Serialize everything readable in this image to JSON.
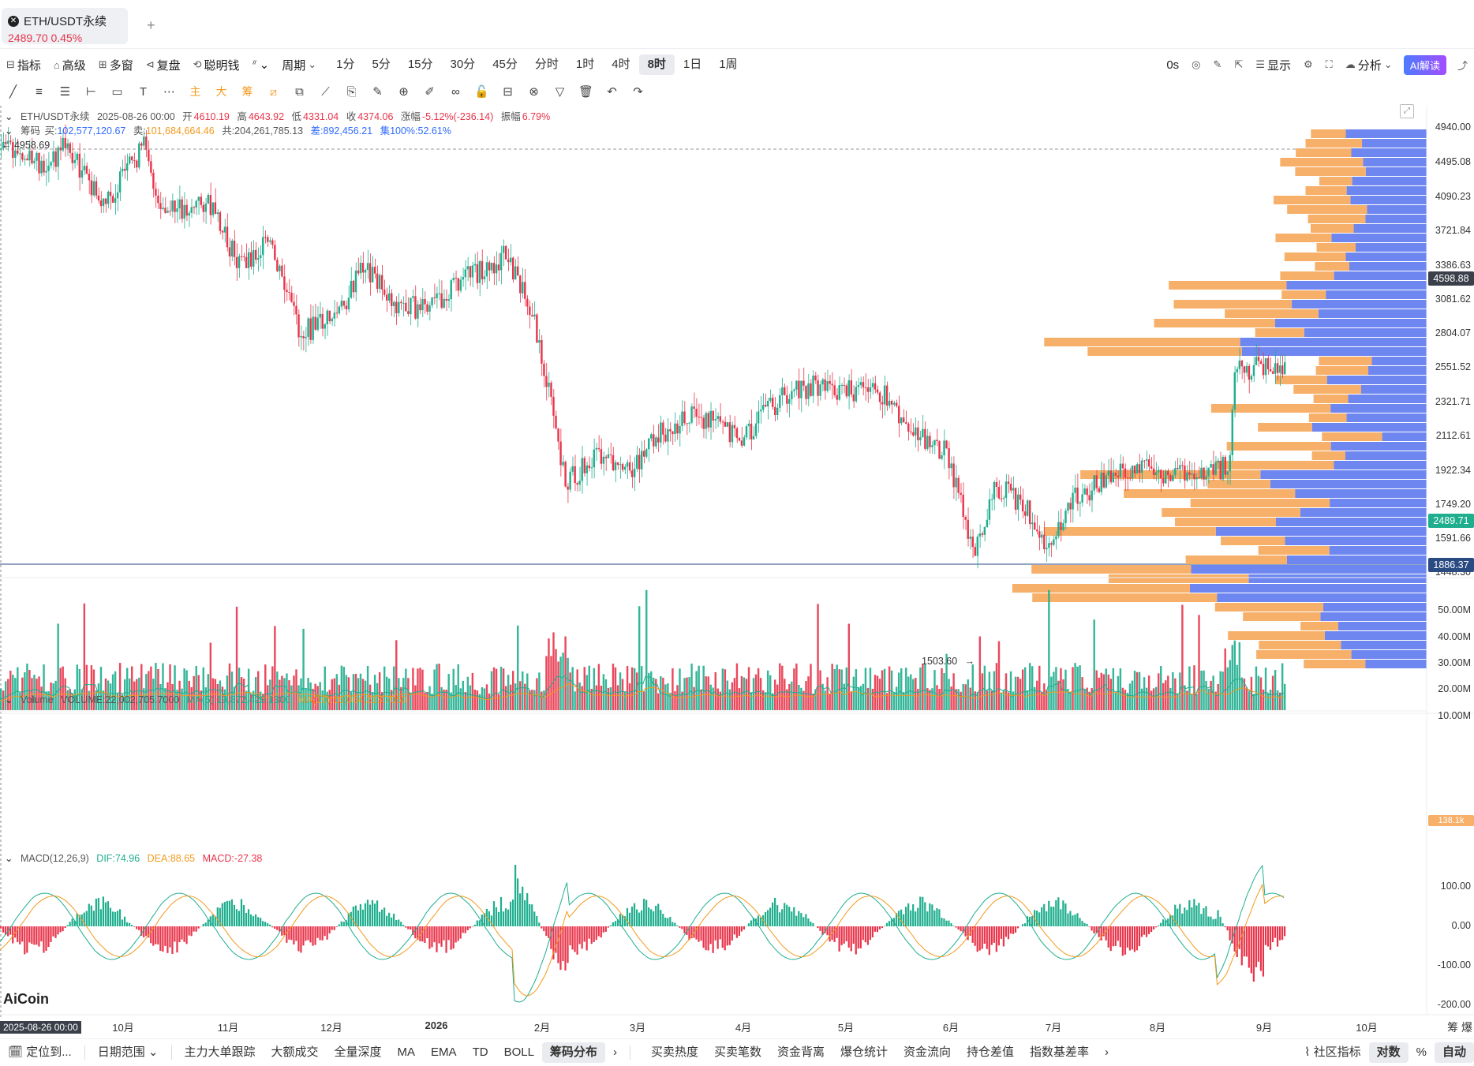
{
  "tab": {
    "symbol": "ETH/USDT永续",
    "price": "2489.70",
    "change": "0.45%",
    "add_label": "+"
  },
  "toolbar1": {
    "left_items": [
      {
        "icon": "indicator-icon",
        "label": "指标"
      },
      {
        "icon": "advanced-icon",
        "label": "高级"
      },
      {
        "icon": "multi-window-icon",
        "label": "多窗"
      },
      {
        "icon": "replay-icon",
        "label": "复盘"
      },
      {
        "icon": "smart-money-icon",
        "label": "聪明钱"
      },
      {
        "icon": "chart-type-icon",
        "label": "⌄"
      }
    ],
    "period_label": "周期",
    "periods": [
      "1分",
      "5分",
      "15分",
      "30分",
      "45分",
      "分时",
      "1时",
      "4时",
      "8时",
      "1日",
      "1周"
    ],
    "active_period": "8时",
    "right_items": [
      "0s",
      "显示",
      "分析"
    ],
    "ai_label": "AI解读"
  },
  "drawing_tools": [
    "╱",
    "≡",
    "☰",
    "⊢",
    "▭",
    "T",
    "⋯",
    "主",
    "大",
    "筹",
    "⧄",
    "⧉",
    "⟋",
    "⎘",
    "✎",
    "⊕",
    "✐",
    "∞",
    "🔓",
    "⊟",
    "⊗",
    "▽",
    "🗑",
    "↶",
    "↷"
  ],
  "header": {
    "symbol": "ETH/USDT永续",
    "date": "2025-08-26 00:00",
    "open_label": "开",
    "open": "4610.19",
    "high_label": "高",
    "high": "4643.92",
    "low_label": "低",
    "low": "4331.04",
    "close_label": "收",
    "close": "4374.06",
    "chg_label": "涨幅",
    "chg": "-5.12%(-236.14)",
    "amp_label": "振幅",
    "amp": "6.79%"
  },
  "chip": {
    "label": "筹码",
    "buy_label": "买:",
    "buy": "102,577,120.67",
    "sell_label": "卖:",
    "sell": "101,684,664.46",
    "total_label": "共:",
    "total": "204,261,785.13",
    "diff_label": "差:",
    "diff": "892,456.21",
    "conc_label": "集100%:",
    "conc": "52.61%"
  },
  "price_axis": {
    "ticks": [
      "4940.00",
      "4495.08",
      "4090.23",
      "3721.84",
      "3386.63",
      "3081.62",
      "2804.07",
      "2551.52",
      "2321.71",
      "2112.61",
      "1922.34",
      "1749.20",
      "1591.66",
      "1448.30"
    ],
    "tag_dark": "4598.88",
    "tag_green": "2489.71",
    "tag_blue": "1886.37",
    "high_marker": "4958.69",
    "low_marker": "1503.60"
  },
  "volume": {
    "label": "Volume",
    "value": "VOLUME:22,002,705.7000",
    "ma5": "MA(5):19,872,429.1300",
    "ma10": "MA(10):16,064,213.7050",
    "ticks": [
      "50.00M",
      "40.00M",
      "30.00M",
      "20.00M",
      "10.00M"
    ],
    "tag": "138.1k"
  },
  "macd": {
    "label": "MACD(12,26,9)",
    "dif": "DIF:74.96",
    "dea": "DEA:88.65",
    "macd": "MACD:-27.38",
    "ticks": [
      "100.00",
      "0.00",
      "-100.00",
      "-200.00"
    ]
  },
  "time_axis": {
    "start_tag": "2025-08-26 00:00",
    "months": [
      "10月",
      "11月",
      "12月",
      "2026",
      "2月",
      "3月",
      "4月",
      "5月",
      "6月",
      "7月",
      "8月",
      "9月",
      "10月"
    ],
    "right_labels": [
      "筹",
      "爆"
    ]
  },
  "watermark": "AiCoin",
  "bottom_bar": {
    "locate": "定位到...",
    "date_range": "日期范围",
    "left_tabs": [
      "主力大单跟踪",
      "大额成交",
      "全量深度",
      "MA",
      "EMA",
      "TD",
      "BOLL",
      "筹码分布"
    ],
    "active_tab": "筹码分布",
    "more": "›",
    "right_tabs": [
      "买卖热度",
      "买卖笔数",
      "资金背离",
      "爆仓统计",
      "资金流向",
      "持仓差值",
      "指数基差率"
    ],
    "more2": "›",
    "community": "社区指标",
    "log": "对数",
    "pct": "%",
    "auto": "自动"
  },
  "colors": {
    "up": "#1fae8e",
    "down": "#e8344a",
    "chip_sell": "#f7b06a",
    "chip_buy": "#6e86f0",
    "dif": "#1fae8e",
    "dea": "#f29a1e",
    "tag_blue": "#2a4a82",
    "tag_green": "#1fae8e",
    "tag_dark": "#3a3f4a"
  }
}
